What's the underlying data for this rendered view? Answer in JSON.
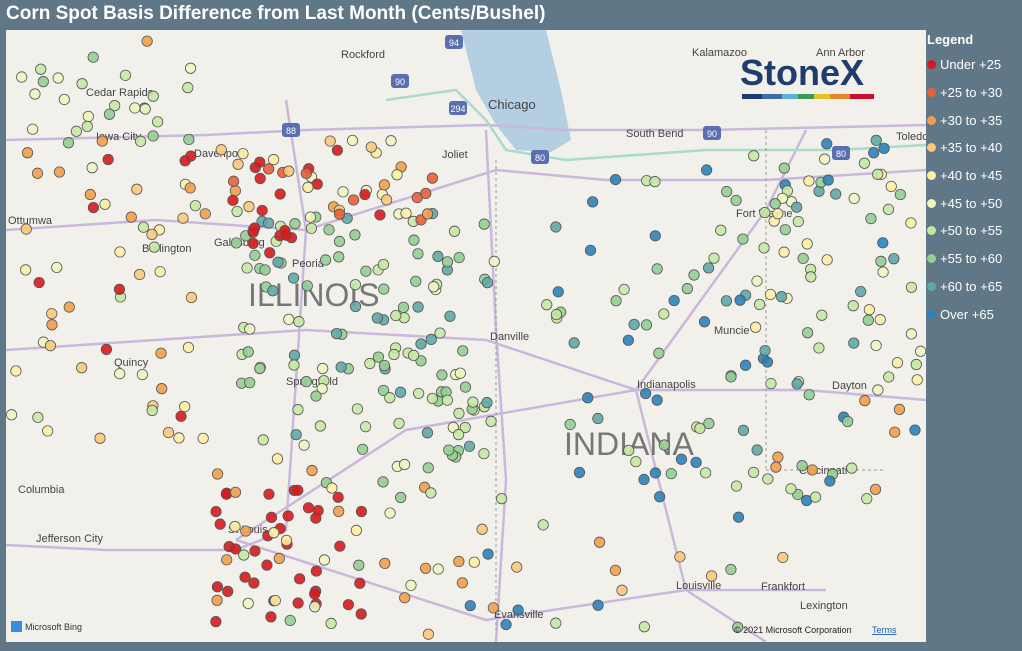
{
  "header": {
    "title": "Corn Spot Basis Difference from Last Month (Cents/Bushel)"
  },
  "legend": {
    "title": "Legend",
    "items": [
      {
        "label": "Under +25",
        "color": "#d7191c"
      },
      {
        "label": "+25 to +30",
        "color": "#e8603a"
      },
      {
        "label": "+30 to +35",
        "color": "#f29e4c"
      },
      {
        "label": "+35 to +40",
        "color": "#f9c97a"
      },
      {
        "label": "+40 to +45",
        "color": "#fbf0a4"
      },
      {
        "label": "+45 to +50",
        "color": "#eef5c0"
      },
      {
        "label": "+50 to +55",
        "color": "#c7e8a4"
      },
      {
        "label": "+55 to +60",
        "color": "#94cf92"
      },
      {
        "label": "+60 to +65",
        "color": "#5fa9a8"
      },
      {
        "label": "Over +65",
        "color": "#2b83ba"
      }
    ]
  },
  "map": {
    "logo": "StoneX",
    "places": [
      "Rockford",
      "Kalamazoo",
      "Ann Arbor",
      "Cedar Rapids",
      "Chicago",
      "Iowa City",
      "South Bend",
      "Toledo",
      "Davenport",
      "Joliet",
      "Ottumwa",
      "Burlington",
      "Galesburg",
      "Fort Wayne",
      "Peoria",
      "Danville",
      "Muncie",
      "Quincy",
      "Springfield",
      "Indianapolis",
      "Dayton",
      "Cincinnati",
      "Columbia",
      "St Louis",
      "Jefferson City",
      "Louisville",
      "Frankfort",
      "Lexington",
      "Evansville"
    ],
    "states": [
      "ILLINOIS",
      "INDIANA"
    ],
    "highways": [
      "94",
      "90",
      "294",
      "88",
      "80",
      "90",
      "80"
    ],
    "provider": "Microsoft Bing",
    "copyright": "© 2021 Microsoft Corporation",
    "terms": "Terms"
  }
}
